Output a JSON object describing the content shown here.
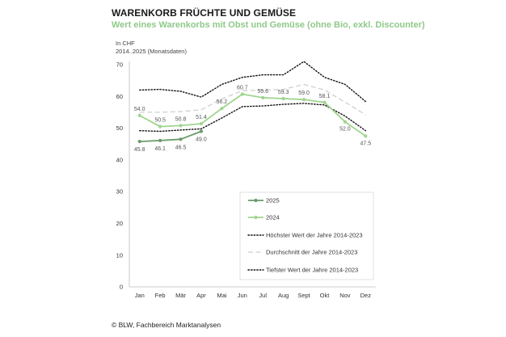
{
  "chart_data": {
    "type": "line",
    "title": "WARENKORB FRÜCHTE UND GEMÜSE",
    "subtitle": "Wert eines Warenkorbs mit Obst und Gemüse (ohne Bio, exkl. Discounter)",
    "unit_label": "In CHF",
    "period_label": "2014..2025 (Monatsdaten)",
    "categories": [
      "Jan",
      "Feb",
      "Mär",
      "Apr",
      "Mai",
      "Jun",
      "Jul",
      "Aug",
      "Sept",
      "Okt",
      "Nov",
      "Dez"
    ],
    "ylim": [
      0,
      70
    ],
    "yticks": [
      0,
      10,
      20,
      30,
      40,
      50,
      60,
      70
    ],
    "series": [
      {
        "name": "2025",
        "style": "solid-marker",
        "color": "#6a9a6a",
        "values": [
          45.8,
          46.1,
          46.5,
          49.0,
          null,
          null,
          null,
          null,
          null,
          null,
          null,
          null
        ],
        "labels": [
          "45.8",
          "46.1",
          "46.5",
          "49.0"
        ]
      },
      {
        "name": "2024",
        "style": "solid-marker",
        "color": "#9fd58f",
        "values": [
          54.0,
          50.5,
          50.8,
          51.4,
          56.2,
          60.7,
          59.6,
          59.3,
          59.0,
          58.1,
          52.0,
          47.5
        ],
        "labels": [
          "54.0",
          "50.5",
          "50.8",
          "51.4",
          "56.2",
          "60.7",
          "59.6",
          "59.3",
          "59.0",
          "58.1",
          "52.0",
          "47.5"
        ]
      },
      {
        "name": "Höchster Wert der Jahre 2014-2023",
        "style": "dotted",
        "color": "#111111",
        "values": [
          62.0,
          62.2,
          61.6,
          59.8,
          63.8,
          66.0,
          66.8,
          66.8,
          71.0,
          66.0,
          63.8,
          58.4
        ]
      },
      {
        "name": "Durchschnitt der Jahre 2014-2023",
        "style": "dashed",
        "color": "#cfcfcf",
        "values": [
          55.0,
          55.0,
          55.2,
          55.8,
          59.2,
          61.8,
          62.0,
          62.2,
          63.8,
          62.0,
          58.2,
          54.2
        ]
      },
      {
        "name": "Tiefster Wert der Jahre 2014-2023",
        "style": "dotted",
        "color": "#111111",
        "values": [
          49.2,
          49.0,
          49.4,
          49.8,
          53.2,
          56.8,
          57.0,
          57.5,
          57.8,
          57.3,
          53.8,
          49.2
        ]
      }
    ],
    "legend_position": "inside-bottom-right",
    "grid": false
  },
  "source": "© BLW, Fachbereich Marktanalysen"
}
